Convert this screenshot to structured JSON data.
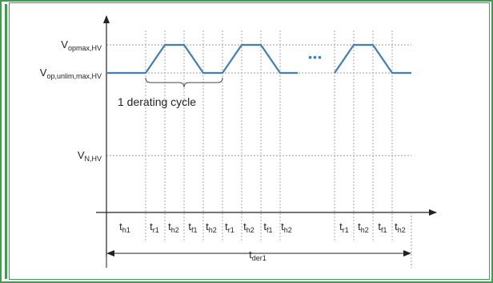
{
  "diagram": {
    "y_levels": {
      "opmax": {
        "base": "V",
        "sub": "opmax,HV"
      },
      "unlim": {
        "base": "V",
        "sub": "op,unlim,max,HV"
      },
      "nominal": {
        "base": "V",
        "sub": "N,HV"
      }
    },
    "cycle_label": "1 derating cycle",
    "ellipsis": "•••",
    "time_labels": [
      {
        "base": "t",
        "sub": "h1"
      },
      {
        "base": "t",
        "sub": "r1"
      },
      {
        "base": "t",
        "sub": "h2"
      },
      {
        "base": "t",
        "sub": "f1"
      },
      {
        "base": "t",
        "sub": "h2"
      },
      {
        "base": "t",
        "sub": "r1"
      },
      {
        "base": "t",
        "sub": "h2"
      },
      {
        "base": "t",
        "sub": "f1"
      },
      {
        "base": "t",
        "sub": "h2"
      },
      {
        "base": "t",
        "sub": "r1"
      },
      {
        "base": "t",
        "sub": "h2"
      },
      {
        "base": "t",
        "sub": "f1"
      },
      {
        "base": "t",
        "sub": "h2"
      }
    ],
    "total_duration": {
      "base": "t",
      "sub": "der1"
    },
    "colors": {
      "waveform": "#3d7fbf",
      "frame": "#3aa04a",
      "axis": "#222222",
      "grid": "#999999"
    }
  }
}
